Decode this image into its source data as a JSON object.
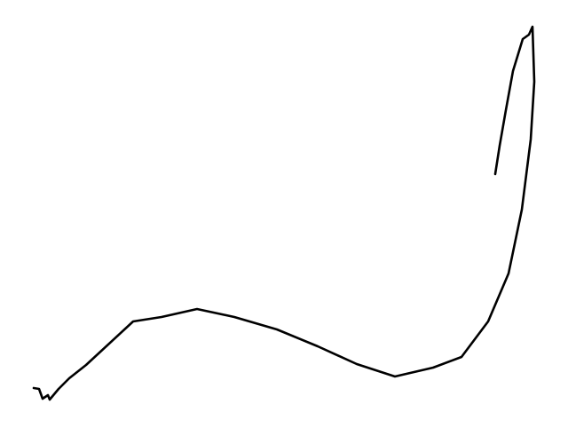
{
  "drawing": {
    "background_color": "#ffffff",
    "stroke_color": "#000000",
    "stroke_icon": "freehand-stroke-icon"
  }
}
